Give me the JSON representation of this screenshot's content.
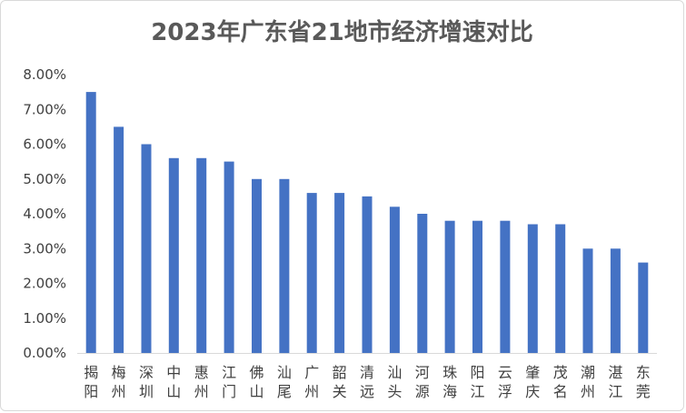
{
  "chart_data": {
    "type": "bar",
    "title": "2023年广东省21地市经济增速对比",
    "xlabel": "",
    "ylabel": "",
    "ylim": [
      0,
      8
    ],
    "y_tick_step": 1,
    "y_tick_format": "percent-2dp",
    "yticks": [
      "0.00%",
      "1.00%",
      "2.00%",
      "3.00%",
      "4.00%",
      "5.00%",
      "6.00%",
      "7.00%",
      "8.00%"
    ],
    "grid": false,
    "legend": "none",
    "bar_color": "#4472c4",
    "categories": [
      "揭阳",
      "梅州",
      "深圳",
      "中山",
      "惠州",
      "江门",
      "佛山",
      "汕尾",
      "广州",
      "韶关",
      "清远",
      "汕头",
      "河源",
      "珠海",
      "阳江",
      "云浮",
      "肇庆",
      "茂名",
      "潮州",
      "湛江",
      "东莞"
    ],
    "values": [
      7.5,
      6.5,
      6.0,
      5.6,
      5.6,
      5.5,
      5.0,
      5.0,
      4.6,
      4.6,
      4.5,
      4.2,
      4.0,
      3.8,
      3.8,
      3.8,
      3.7,
      3.7,
      3.0,
      3.0,
      2.6
    ]
  }
}
